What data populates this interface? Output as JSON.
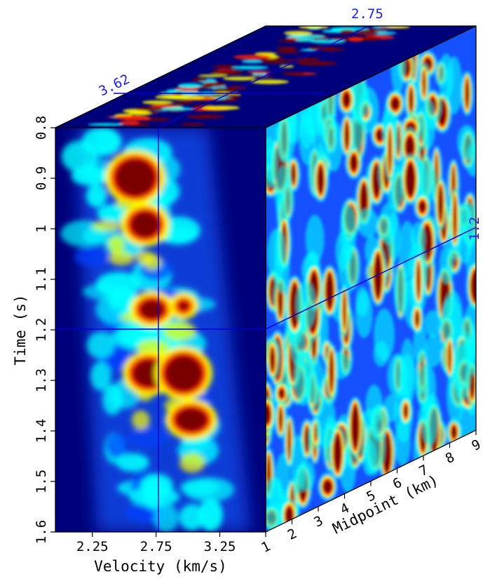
{
  "figure": {
    "type": "3d-cube-slice",
    "colors": {
      "slice_line": "#0000cc",
      "slice_label": "#1a1aff",
      "colormap": [
        "#00007a",
        "#0040ff",
        "#00ffff",
        "#ffff00",
        "#ff2000",
        "#7a0000"
      ]
    },
    "axes": {
      "time": {
        "title": "Time (s)",
        "ticks": [
          "0.8",
          "0.9",
          "1",
          "1.1",
          "1.2",
          "1.3",
          "1.4",
          "1.5",
          "1.6"
        ],
        "range": [
          0.8,
          1.6
        ]
      },
      "velocity": {
        "title": "Velocity (km/s)",
        "ticks": [
          "2.25",
          "2.75",
          "3.25"
        ],
        "range": [
          1.96,
          3.61
        ]
      },
      "midpoint": {
        "title": "Midpoint (km)",
        "ticks": [
          "1",
          "2",
          "3",
          "4",
          "5",
          "6",
          "7",
          "8",
          "9"
        ],
        "range": [
          1,
          9
        ]
      }
    },
    "slice_labels": {
      "top_front": "3.62",
      "top_back": "2.75",
      "right": "1.2"
    }
  }
}
